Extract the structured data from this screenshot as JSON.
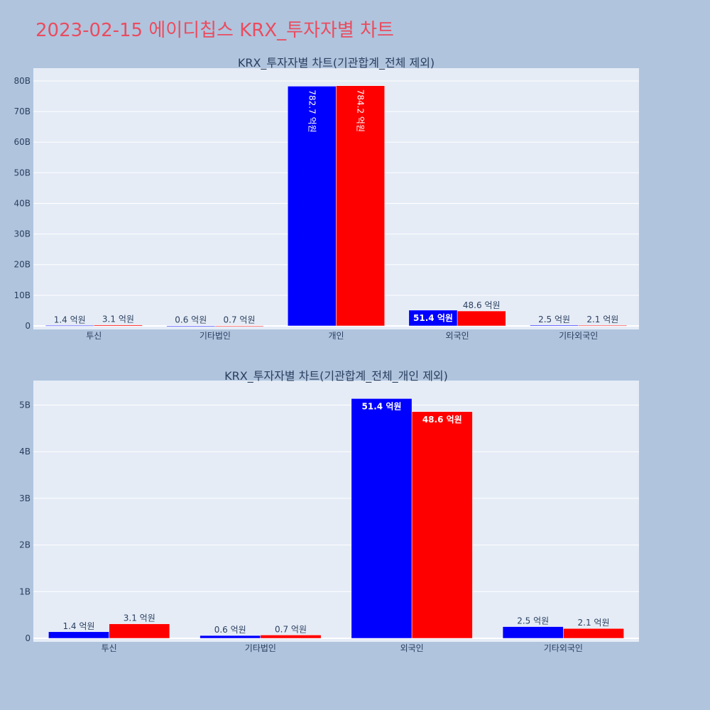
{
  "page": {
    "title": "2023-02-15 에이디칩스 KRX_투자자별 차트"
  },
  "colors": {
    "background": "#b0c4de",
    "plot_background": "#e5ecf6",
    "title": "#ea4c5f",
    "series_1": "#0000ff",
    "series_2": "#ff0000",
    "text": "#2a3f5f",
    "grid": "#ffffff"
  },
  "chart_data": [
    {
      "type": "bar",
      "title": "KRX_투자자별 차트(기관합계_전체 제외)",
      "categories": [
        "투신",
        "기타법인",
        "개인",
        "외국인",
        "기타외국인"
      ],
      "series": [
        {
          "values": [
            140000000,
            60000000,
            78270000000,
            5140000000,
            250000000
          ],
          "labels": [
            "1.4 억원",
            "0.6 억원",
            "782.7 억원",
            "51.4 억원",
            "2.5 억원"
          ]
        },
        {
          "values": [
            310000000,
            70000000,
            78420000000,
            4860000000,
            210000000
          ],
          "labels": [
            "3.1 억원",
            "0.7 억원",
            "784.2 억원",
            "48.6 억원",
            "2.1 억원"
          ]
        }
      ],
      "ylim": [
        0,
        83000000000
      ],
      "yticks": [
        0,
        10000000000,
        20000000000,
        30000000000,
        40000000000,
        50000000000,
        60000000000,
        70000000000,
        80000000000
      ],
      "ytick_labels": [
        "0",
        "10B",
        "20B",
        "30B",
        "40B",
        "50B",
        "60B",
        "70B",
        "80B"
      ],
      "grid": true
    },
    {
      "type": "bar",
      "title": "KRX_투자자별 차트(기관합계_전체_개인 제외)",
      "categories": [
        "투신",
        "기타법인",
        "외국인",
        "기타외국인"
      ],
      "series": [
        {
          "values": [
            140000000,
            60000000,
            5140000000,
            250000000
          ],
          "labels": [
            "1.4 억원",
            "0.6 억원",
            "51.4 억원",
            "2.5 억원"
          ]
        },
        {
          "values": [
            310000000,
            70000000,
            4860000000,
            210000000
          ],
          "labels": [
            "3.1 억원",
            "0.7 억원",
            "48.6 억원",
            "2.1 억원"
          ]
        }
      ],
      "ylim": [
        0,
        5450000000
      ],
      "yticks": [
        0,
        1000000000,
        2000000000,
        3000000000,
        4000000000,
        5000000000
      ],
      "ytick_labels": [
        "0",
        "1B",
        "2B",
        "3B",
        "4B",
        "5B"
      ],
      "grid": true
    }
  ]
}
